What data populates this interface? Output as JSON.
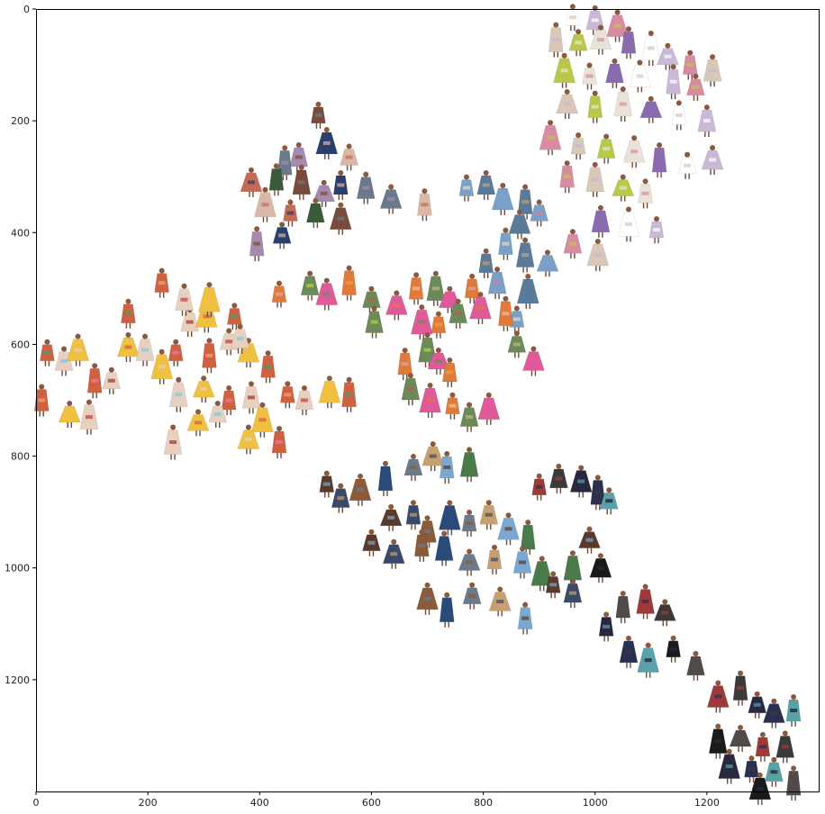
{
  "chart_data": {
    "type": "scatter",
    "title": "",
    "xlabel": "",
    "ylabel": "",
    "xlim": [
      0,
      1400
    ],
    "ylim": [
      1400,
      0
    ],
    "y_inverted": true,
    "grid": false,
    "x_ticks": [
      "0",
      "200",
      "400",
      "600",
      "800",
      "1000",
      "1200"
    ],
    "y_ticks": [
      "0",
      "200",
      "400",
      "600",
      "800",
      "1000",
      "1200"
    ],
    "marker": "runway-look-thumbnail",
    "clusters": [
      {
        "region": "upper-right",
        "palette": [
          "#ffffff",
          "#e8e2d8",
          "#d9c7b8",
          "#c9b8d6",
          "#8a6bb0",
          "#b8c94a",
          "#d98ca0"
        ],
        "points": [
          [
            960,
            15
          ],
          [
            1000,
            20
          ],
          [
            1040,
            30
          ],
          [
            930,
            55
          ],
          [
            970,
            60
          ],
          [
            1010,
            55
          ],
          [
            1060,
            60
          ],
          [
            1100,
            70
          ],
          [
            1130,
            85
          ],
          [
            1170,
            100
          ],
          [
            1210,
            110
          ],
          [
            945,
            110
          ],
          [
            990,
            120
          ],
          [
            1035,
            115
          ],
          [
            1080,
            120
          ],
          [
            1140,
            130
          ],
          [
            1180,
            140
          ],
          [
            950,
            170
          ],
          [
            1000,
            175
          ],
          [
            1050,
            170
          ],
          [
            1100,
            180
          ],
          [
            1150,
            190
          ],
          [
            1200,
            200
          ],
          [
            920,
            230
          ],
          [
            970,
            245
          ],
          [
            1020,
            250
          ],
          [
            1070,
            255
          ],
          [
            1115,
            270
          ],
          [
            1165,
            280
          ],
          [
            1210,
            270
          ],
          [
            950,
            300
          ],
          [
            1000,
            305
          ],
          [
            1050,
            320
          ],
          [
            1090,
            330
          ],
          [
            1010,
            380
          ],
          [
            1060,
            385
          ],
          [
            1110,
            395
          ],
          [
            960,
            420
          ],
          [
            1005,
            440
          ]
        ]
      },
      {
        "region": "upper-middle",
        "palette": [
          "#2b3f6b",
          "#7a4a3a",
          "#c46b55",
          "#6b7a8a",
          "#a68ab0",
          "#3a5a3a",
          "#d8b8a8"
        ],
        "points": [
          [
            505,
            190
          ],
          [
            470,
            265
          ],
          [
            520,
            240
          ],
          [
            445,
            275
          ],
          [
            560,
            265
          ],
          [
            385,
            310
          ],
          [
            430,
            305
          ],
          [
            475,
            310
          ],
          [
            515,
            330
          ],
          [
            545,
            315
          ],
          [
            590,
            320
          ],
          [
            410,
            350
          ],
          [
            455,
            365
          ],
          [
            500,
            365
          ],
          [
            545,
            375
          ],
          [
            395,
            420
          ],
          [
            440,
            405
          ],
          [
            635,
            340
          ],
          [
            695,
            350
          ]
        ]
      },
      {
        "region": "upper-middle-right",
        "palette": [
          "#d97a9a",
          "#c89b6b",
          "#7aa0c8",
          "#b8a898",
          "#e8d8c8",
          "#5a7a9a"
        ],
        "points": [
          [
            770,
            320
          ],
          [
            805,
            315
          ],
          [
            835,
            340
          ],
          [
            875,
            345
          ],
          [
            900,
            365
          ],
          [
            865,
            385
          ],
          [
            840,
            420
          ],
          [
            875,
            440
          ],
          [
            915,
            455
          ],
          [
            805,
            455
          ],
          [
            825,
            490
          ],
          [
            880,
            505
          ],
          [
            860,
            555
          ]
        ]
      },
      {
        "region": "center",
        "palette": [
          "#e05a9a",
          "#b8d83a",
          "#f0a040",
          "#e07a3a",
          "#c8b880",
          "#d8a8a8",
          "#6a8a5a",
          "#c05a4a",
          "#e8c8a0"
        ],
        "points": [
          [
            435,
            510
          ],
          [
            490,
            495
          ],
          [
            520,
            510
          ],
          [
            560,
            490
          ],
          [
            600,
            520
          ],
          [
            645,
            530
          ],
          [
            680,
            500
          ],
          [
            715,
            500
          ],
          [
            740,
            520
          ],
          [
            780,
            500
          ],
          [
            605,
            560
          ],
          [
            690,
            560
          ],
          [
            720,
            565
          ],
          [
            755,
            545
          ],
          [
            795,
            535
          ],
          [
            840,
            545
          ],
          [
            860,
            600
          ],
          [
            890,
            630
          ],
          [
            660,
            635
          ],
          [
            700,
            610
          ],
          [
            720,
            630
          ],
          [
            740,
            650
          ],
          [
            670,
            680
          ],
          [
            705,
            700
          ],
          [
            745,
            710
          ],
          [
            775,
            730
          ],
          [
            810,
            715
          ]
        ]
      },
      {
        "region": "left",
        "palette": [
          "#e8a878",
          "#f0c040",
          "#7ac8e8",
          "#e87aa8",
          "#d06040",
          "#c8383a",
          "#40a070",
          "#e8d0c0",
          "#a03028"
        ],
        "points": [
          [
            20,
            615
          ],
          [
            50,
            630
          ],
          [
            75,
            610
          ],
          [
            105,
            665
          ],
          [
            135,
            665
          ],
          [
            165,
            605
          ],
          [
            10,
            700
          ],
          [
            95,
            730
          ],
          [
            60,
            725
          ],
          [
            165,
            545
          ],
          [
            195,
            610
          ],
          [
            225,
            640
          ],
          [
            250,
            615
          ],
          [
            275,
            560
          ],
          [
            305,
            550
          ],
          [
            310,
            620
          ],
          [
            345,
            595
          ],
          [
            380,
            615
          ],
          [
            415,
            640
          ],
          [
            255,
            690
          ],
          [
            300,
            680
          ],
          [
            345,
            700
          ],
          [
            385,
            695
          ],
          [
            405,
            735
          ],
          [
            450,
            690
          ],
          [
            480,
            700
          ],
          [
            525,
            685
          ],
          [
            560,
            690
          ],
          [
            325,
            725
          ],
          [
            380,
            770
          ],
          [
            435,
            775
          ],
          [
            245,
            775
          ],
          [
            290,
            740
          ],
          [
            225,
            490
          ],
          [
            265,
            520
          ],
          [
            310,
            520
          ],
          [
            355,
            550
          ],
          [
            365,
            590
          ]
        ]
      },
      {
        "region": "lower-middle",
        "palette": [
          "#3a4a6a",
          "#6a7a8a",
          "#4a7a4a",
          "#8a5a3a",
          "#c8a070",
          "#5a3a2a",
          "#2a4a7a",
          "#7aa8d0"
        ],
        "points": [
          [
            520,
            850
          ],
          [
            545,
            875
          ],
          [
            580,
            860
          ],
          [
            625,
            840
          ],
          [
            675,
            820
          ],
          [
            710,
            800
          ],
          [
            735,
            820
          ],
          [
            775,
            815
          ],
          [
            635,
            910
          ],
          [
            675,
            905
          ],
          [
            700,
            935
          ],
          [
            740,
            910
          ],
          [
            775,
            920
          ],
          [
            810,
            905
          ],
          [
            845,
            930
          ],
          [
            880,
            945
          ],
          [
            600,
            955
          ],
          [
            640,
            975
          ],
          [
            690,
            960
          ],
          [
            730,
            965
          ],
          [
            775,
            990
          ],
          [
            820,
            985
          ],
          [
            870,
            990
          ],
          [
            905,
            1010
          ],
          [
            925,
            1030
          ],
          [
            960,
            1045
          ],
          [
            700,
            1055
          ],
          [
            735,
            1075
          ],
          [
            780,
            1050
          ],
          [
            830,
            1060
          ],
          [
            875,
            1090
          ],
          [
            960,
            1000
          ],
          [
            990,
            950
          ]
        ]
      },
      {
        "region": "lower-right",
        "palette": [
          "#1a1a1a",
          "#2a3050",
          "#3a3a3a",
          "#504a48",
          "#5aa0a8",
          "#2a2840",
          "#a03a3a"
        ],
        "points": [
          [
            900,
            855
          ],
          [
            935,
            840
          ],
          [
            975,
            845
          ],
          [
            1005,
            865
          ],
          [
            1025,
            880
          ],
          [
            1010,
            1000
          ],
          [
            1050,
            1070
          ],
          [
            1090,
            1060
          ],
          [
            1125,
            1080
          ],
          [
            1020,
            1105
          ],
          [
            1060,
            1150
          ],
          [
            1095,
            1165
          ],
          [
            1140,
            1145
          ],
          [
            1180,
            1175
          ],
          [
            1220,
            1230
          ],
          [
            1260,
            1215
          ],
          [
            1290,
            1245
          ],
          [
            1320,
            1260
          ],
          [
            1355,
            1255
          ],
          [
            1220,
            1310
          ],
          [
            1260,
            1305
          ],
          [
            1300,
            1320
          ],
          [
            1340,
            1320
          ],
          [
            1240,
            1355
          ],
          [
            1280,
            1360
          ],
          [
            1320,
            1365
          ],
          [
            1295,
            1395
          ],
          [
            1355,
            1385
          ]
        ]
      }
    ]
  }
}
